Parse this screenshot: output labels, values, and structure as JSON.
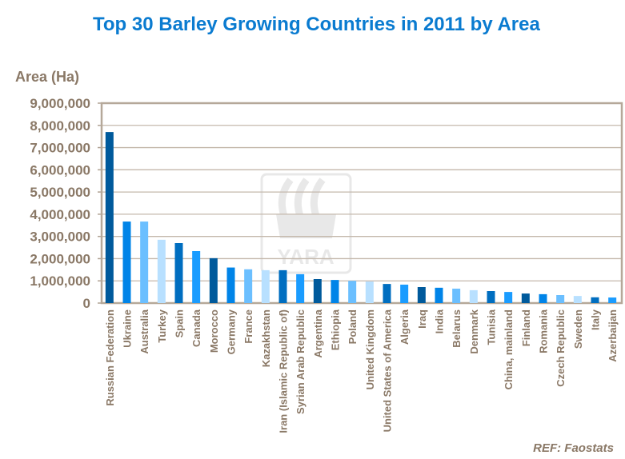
{
  "chart_data": {
    "type": "bar",
    "title": "Top 30 Barley Growing Countries in 2011 by Area",
    "ylabel": "Area (Ha)",
    "xlabel": "",
    "ylim": [
      0,
      9000000
    ],
    "yticks": [
      "0",
      "1,000,000",
      "2,000,000",
      "3,000,000",
      "4,000,000",
      "5,000,000",
      "6,000,000",
      "7,000,000",
      "8,000,000",
      "9,000,000"
    ],
    "grid": true,
    "categories": [
      "Russian Federation",
      "Ukraine",
      "Australia",
      "Turkey",
      "Spain",
      "Canada",
      "Morocco",
      "Germany",
      "France",
      "Kazakhstan",
      "Iran (Islamic Republic of)",
      "Syrian Arab Republic",
      "Argentina",
      "Ethiopia",
      "Poland",
      "United Kingdom",
      "United States of America",
      "Algeria",
      "Iraq",
      "India",
      "Belarus",
      "Denmark",
      "Tunisia",
      "China, mainland",
      "Finland",
      "Romania",
      "Czech Republic",
      "Sweden",
      "Italy",
      "Azerbaijan"
    ],
    "values": [
      7700000,
      3670000,
      3670000,
      2850000,
      2700000,
      2340000,
      2020000,
      1600000,
      1520000,
      1480000,
      1480000,
      1300000,
      1080000,
      1040000,
      1000000,
      970000,
      860000,
      830000,
      720000,
      690000,
      650000,
      580000,
      540000,
      500000,
      430000,
      400000,
      360000,
      320000,
      260000,
      250000
    ],
    "bar_colors": [
      "#005a9c",
      "#0084e8",
      "#6bbfff",
      "#b8e0ff",
      "#006ec0",
      "#1a9cff"
    ],
    "annotation": "REF: Faostats"
  },
  "watermark": "YARA"
}
